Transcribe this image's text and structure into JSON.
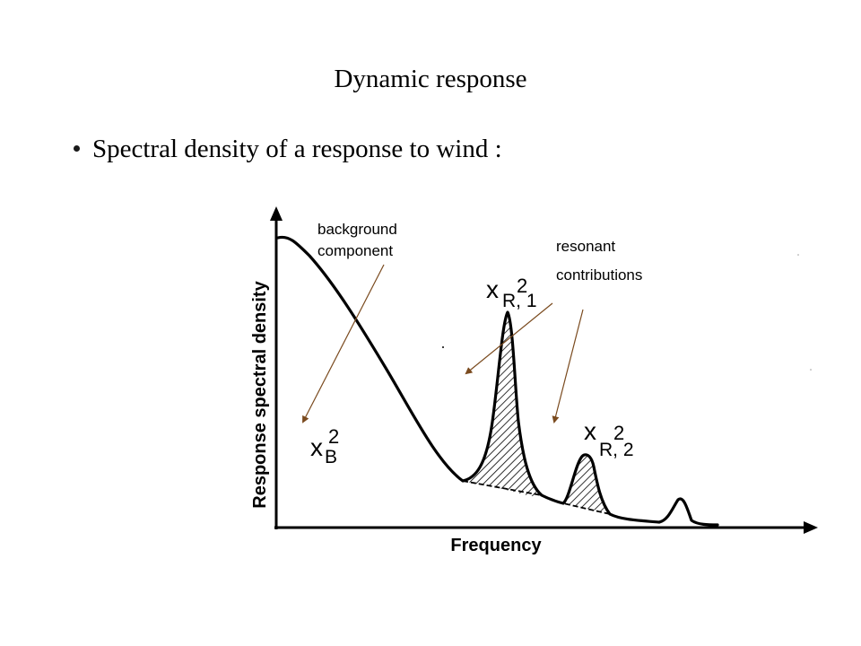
{
  "slide": {
    "title": "Dynamic response",
    "bullet": "Spectral density of a response to wind :"
  },
  "diagram": {
    "y_axis_label": "Response spectral density",
    "x_axis_label": "Frequency",
    "annotations": {
      "background_line1": "background",
      "background_line2": "component",
      "resonant_line1": "resonant",
      "resonant_line2": "contributions"
    },
    "symbols": {
      "xb_base": "x",
      "xb_sub": "B",
      "xb_sup": "2",
      "xr1_base": "x",
      "xr1_sub": "R, 1",
      "xr1_sup": "2",
      "xr2_base": "x",
      "xr2_sub": "R, 2",
      "xr2_sup": "2"
    },
    "arrow_color": "#7a4a1e",
    "hatch_color": "#000000"
  }
}
